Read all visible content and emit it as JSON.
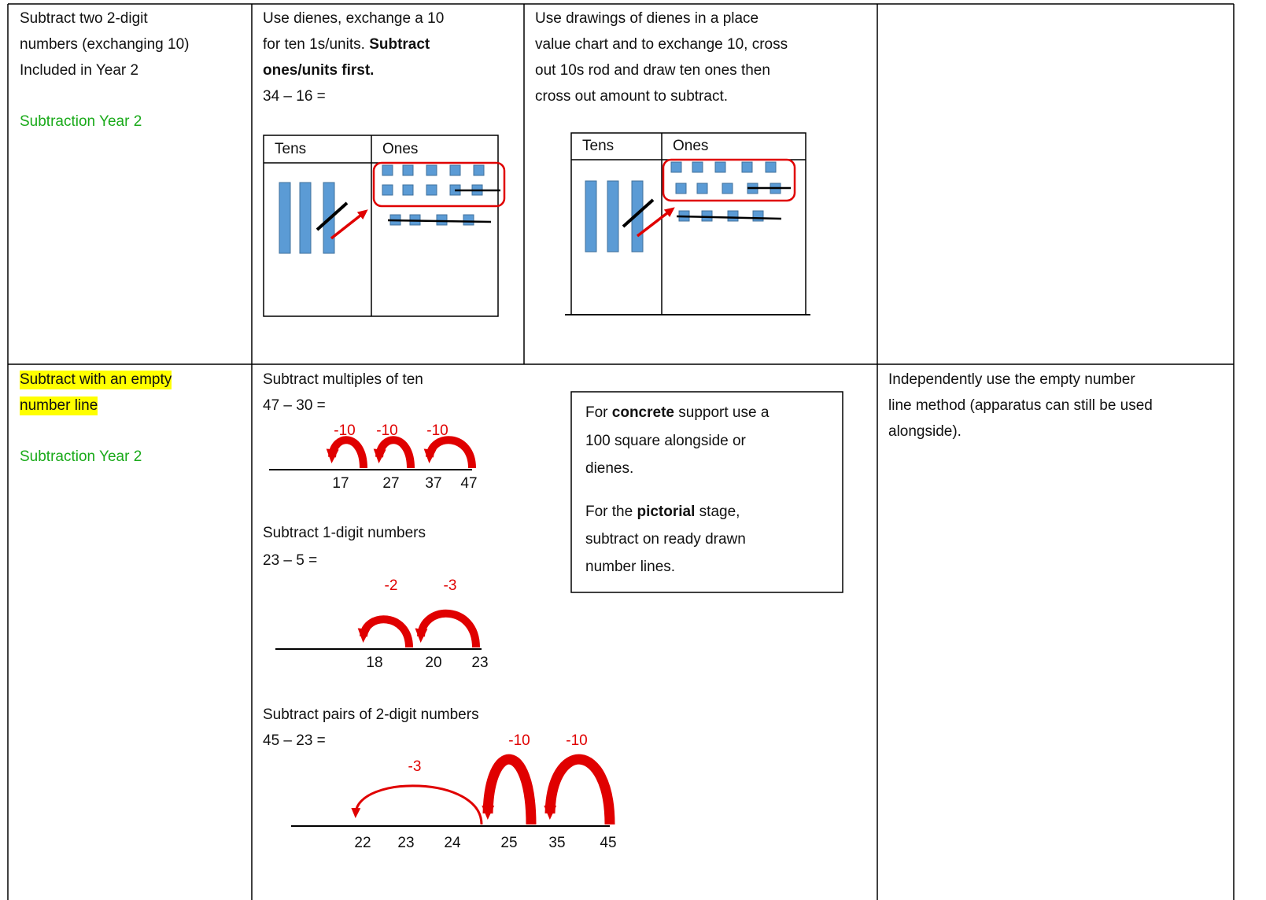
{
  "table": {
    "rows": [
      [
        {
          "lines": [
            "Subtract two 2-digit",
            "numbers (exchanging 10)",
            "Included in Year 2"
          ],
          "link": "Subtraction Year 2"
        },
        {
          "lines": [
            "Use dienes, exchange a 10",
            [
              "for ten 1s/units. ",
              {
                "text": "Subtract",
                "bold": true
              }
            ],
            [
              {
                "text": "ones/units first.",
                "bold": true
              }
            ],
            "34 – 16 ="
          ],
          "chart": {
            "headers": [
              "Tens",
              "Ones"
            ]
          }
        },
        {
          "lines": [
            "Use drawings of dienes in a place",
            "value chart and to exchange 10, cross",
            "out 10s rod and draw ten ones then",
            "cross out amount to subtract."
          ],
          "chart": {
            "headers": [
              "Tens",
              "Ones"
            ]
          }
        }
      ],
      [
        {
          "lines": [
            "Subtract with an empty",
            "number line"
          ],
          "highlight": true,
          "link": "Subtraction Year 2"
        },
        {
          "examples": [
            {
              "title": "Subtract multiples of ten",
              "equation": "47 – 30 =",
              "jumps": [
                "-10",
                "-10",
                "-10"
              ],
              "numbers": [
                "17",
                "27",
                "37",
                "47"
              ]
            },
            {
              "title": "Subtract 1-digit numbers",
              "equation": "23 – 5 =",
              "jumps": [
                "-2",
                "-3"
              ],
              "numbers": [
                "18",
                "20",
                "23"
              ]
            },
            {
              "title": "Subtract pairs of 2-digit numbers",
              "equation": "45 – 23 =",
              "jumps": [
                "-10",
                "-10",
                "-3"
              ],
              "numbers": [
                "22",
                "23",
                "24",
                "25",
                "35",
                "45"
              ]
            }
          ],
          "box": {
            "lines": [
              [
                "For ",
                {
                  "text": "concrete",
                  "bold": true
                },
                " support use a"
              ],
              "100 square alongside or",
              "dienes.",
              [
                "For the ",
                {
                  "text": "pictorial",
                  "bold": true
                },
                " stage,"
              ],
              "subtract on ready drawn",
              "number lines."
            ]
          }
        },
        {
          "lines": [
            "Independently use the empty number",
            "line method (apparatus can still be used",
            "alongside)."
          ]
        }
      ]
    ]
  }
}
